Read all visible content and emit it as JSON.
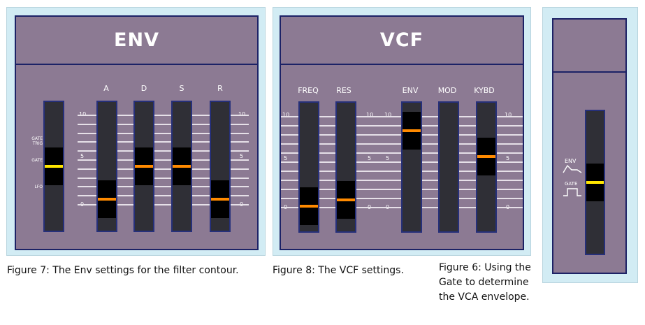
{
  "colors": {
    "panel_bg": "#d2ecf4",
    "face": "#8c7a93",
    "border": "#1c2266",
    "orange": "#ff8a00",
    "yellow": "#ffe600"
  },
  "env": {
    "title": "ENV",
    "labels": [
      "A",
      "D",
      "S",
      "R"
    ],
    "scale": {
      "top": "10",
      "mid": "5",
      "bottom": "0"
    },
    "side": {
      "gate_trig": "GATE TRIG",
      "gate": "GATE",
      "lfo": "LFO"
    },
    "sliders": {
      "mode": 0.5,
      "a": 0.18,
      "d": 0.5,
      "s": 0.5,
      "r": 0.18
    }
  },
  "vcf": {
    "title": "VCF",
    "labels": [
      "FREQ",
      "RES",
      "ENV",
      "MOD",
      "KYBD"
    ],
    "scale": {
      "top": "10",
      "mid": "5",
      "bottom": "0"
    },
    "sliders": {
      "freq": 0.12,
      "res": 0.18,
      "env": 0.85,
      "mod": null,
      "kybd": 0.6
    }
  },
  "vca": {
    "side": {
      "env": "ENV",
      "gate": "GATE"
    },
    "slider": 0.5
  },
  "captions": {
    "fig7": "Figure 7: The Env settings for the filter contour.",
    "fig8": "Figure 8: The VCF settings.",
    "fig6": [
      "Figure 6: Using the",
      "Gate to determine",
      "the VCA envelope."
    ]
  }
}
